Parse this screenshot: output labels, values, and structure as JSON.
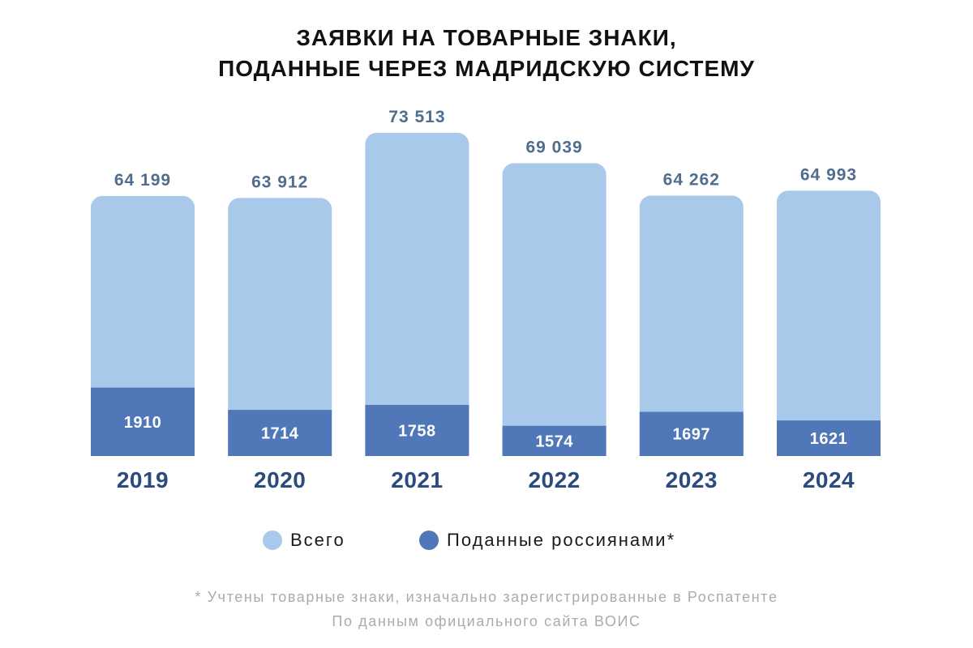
{
  "chart_data": {
    "type": "bar",
    "barmode": "overlay",
    "title": "ЗАЯВКИ НА ТОВАРНЫЕ ЗНАКИ,\nПОДАННЫЕ ЧЕРЕЗ МАДРИДСКУЮ СИСТЕМУ",
    "categories": [
      "2019",
      "2020",
      "2021",
      "2022",
      "2023",
      "2024"
    ],
    "series": [
      {
        "name": "Всего",
        "values": [
          64199,
          63912,
          73513,
          69039,
          64262,
          64993
        ],
        "color": "#A8C9EA"
      },
      {
        "name": "Поданные россиянами*",
        "values": [
          1910,
          1714,
          1758,
          1574,
          1697,
          1621
        ],
        "color": "#5077B8"
      }
    ],
    "data_labels": true,
    "grid": false,
    "legend": "bottom"
  },
  "footnotes": [
    "* Учтены товарные знаки, изначально зарегистрированные в Роспатенте",
    "По данным официального сайта ВОИС"
  ],
  "colors": {
    "title": "#111111",
    "value_label": "#4F6D8D",
    "inner_label": "#FFFFFF",
    "category_label": "#2B4A7E",
    "legend_text": "#1A1A1A",
    "footnote": "#ABABAB"
  }
}
